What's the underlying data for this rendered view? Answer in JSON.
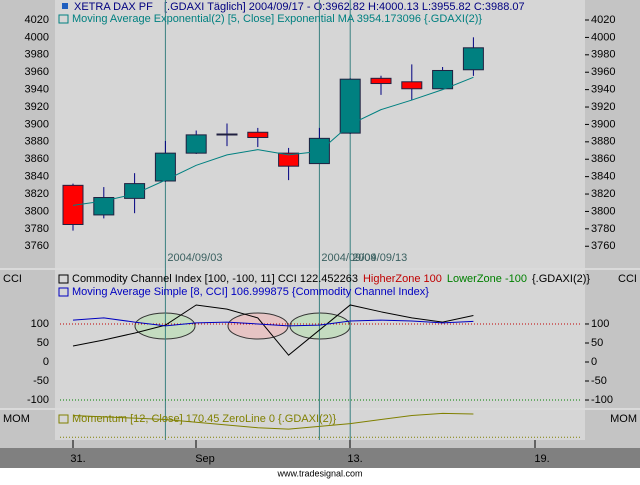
{
  "chart_data": [
    {
      "type": "candlestick",
      "title": "XETRA DAX PF",
      "subtitle": "[.GDAXI  Täglich] 2004/09/17 - O:3962.82 H:4000.13 L:3955.82 C:3988.07",
      "open": [
        3830,
        3796,
        3815,
        3835,
        3867,
        3888,
        3891,
        3867,
        3855,
        3890,
        3953,
        3949,
        3941,
        3962.82
      ],
      "high": [
        3832,
        3828,
        3844,
        3881,
        3893,
        3901,
        3896,
        3873,
        3896,
        3953,
        3956,
        3969,
        3966,
        4000.13
      ],
      "low": [
        3778,
        3792,
        3798,
        3834,
        3866,
        3875,
        3874,
        3836,
        3855,
        3889,
        3934,
        3928,
        3941,
        3955.82
      ],
      "close": [
        3785,
        3816,
        3832,
        3867,
        3888,
        3889,
        3885,
        3852,
        3884,
        3952,
        3947,
        3941,
        3962,
        3988.07
      ],
      "up_color": "#008080",
      "down_color": "#ff0000",
      "series": [
        {
          "name": "Moving Average Exponential(2) [5, Close] Exponential MA 3954.173096 {.GDAXI(2)}",
          "color": "#008080",
          "values": [
            3807,
            3812,
            3820,
            3836,
            3853,
            3865,
            3871,
            3865,
            3869,
            3900,
            3917,
            3928,
            3940,
            3954.17
          ]
        }
      ],
      "annotations": [
        "2004/09/03",
        "2004/09/09",
        "2004/09/13"
      ],
      "ylim": [
        3735,
        4043
      ],
      "yticks": [
        4020,
        4000,
        3980,
        3960,
        3940,
        3920,
        3900,
        3880,
        3860,
        3840,
        3820,
        3800,
        3780,
        3760
      ]
    },
    {
      "type": "line",
      "label": "CCI",
      "series": [
        {
          "name": "Commodity Channel Index [100, -100, 11] CCI 122.452263",
          "color": "#000000",
          "values": [
            42,
            58,
            76,
            97,
            150,
            139,
            116,
            18,
            84,
            150,
            132,
            116,
            105,
            122.45
          ]
        },
        {
          "name": "Moving Average Simple [8, CCI] 106.999875 {Commodity Channel Index}",
          "color": "#0000c0",
          "values": [
            110,
            116,
            105,
            95,
            103,
            105,
            100,
            95,
            97,
            108,
            110,
            108,
            103,
            107
          ]
        }
      ],
      "ref_lines": [
        {
          "name": "HigherZone 100",
          "value": 100,
          "color": "#c00000"
        },
        {
          "name": "LowerZone -100",
          "value": -100,
          "color": "#008000"
        }
      ],
      "legend_suffix": "{.GDAXI(2)}",
      "ylim": [
        -121,
        242
      ],
      "yticks": [
        100,
        50,
        0,
        -50,
        -100
      ]
    },
    {
      "type": "line",
      "label": "MOM",
      "series": [
        {
          "name": "Momentum [12, Close] 170.45 ZeroLine 0 {.GDAXI(2)}",
          "color": "#808000",
          "values": [
            160,
            150,
            140,
            130,
            110,
            90,
            70,
            60,
            80,
            100,
            130,
            160,
            175,
            170.45
          ]
        }
      ],
      "ref_lines": [
        {
          "value": 0,
          "color": "#808000"
        }
      ],
      "ylim": [
        -20,
        200
      ]
    }
  ],
  "x_axis_labels": [
    "31.",
    "Sep",
    "13.",
    "19."
  ],
  "footer": "www.tradesignal.com"
}
